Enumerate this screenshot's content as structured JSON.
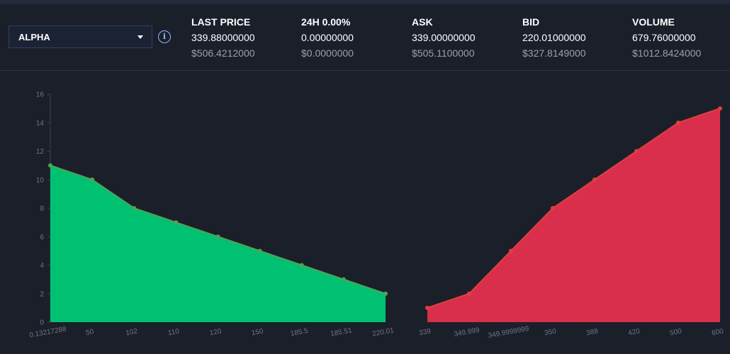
{
  "selector": {
    "value": "ALPHA"
  },
  "stats": [
    {
      "label": "LAST PRICE",
      "value": "339.88000000",
      "usd": "$506.4212000"
    },
    {
      "label": "24H 0.00%",
      "value": "0.00000000",
      "usd": "$0.0000000"
    },
    {
      "label": "ASK",
      "value": "339.00000000",
      "usd": "$505.1100000"
    },
    {
      "label": "BID",
      "value": "220.01000000",
      "usd": "$327.8149000"
    },
    {
      "label": "VOLUME",
      "value": "679.76000000",
      "usd": "$1012.8424000"
    }
  ],
  "chart_data": {
    "type": "area",
    "ylim": [
      0,
      16
    ],
    "yticks": [
      0,
      2,
      4,
      6,
      8,
      10,
      12,
      14,
      16
    ],
    "grid": false,
    "series": [
      {
        "color": "#00c172",
        "line_color": "#4fa35a",
        "x": [
          "0.13217288",
          "50",
          "102",
          "110",
          "120",
          "150",
          "185.5",
          "185.51",
          "220.01"
        ],
        "values": [
          11,
          10,
          8,
          7,
          6,
          5,
          4,
          3,
          2
        ]
      },
      {
        "color": "#d92e4c",
        "line_color": "#e0403c",
        "x": [
          "339",
          "349.999",
          "349.9999999",
          "350",
          "388",
          "420",
          "500",
          "600"
        ],
        "values": [
          1,
          2,
          5,
          8,
          10,
          12,
          14,
          15
        ]
      }
    ]
  }
}
